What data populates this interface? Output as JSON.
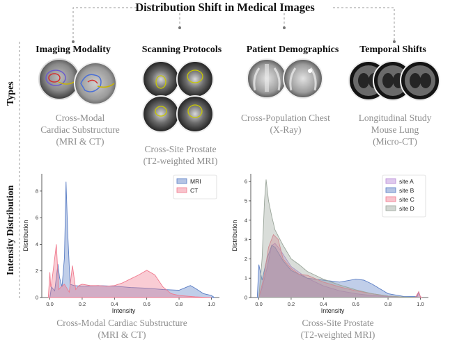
{
  "title": "Distribution Shift  in Medical Images",
  "side_labels": {
    "types": "Types",
    "intensity": "Intensity  Distribution"
  },
  "categories": [
    {
      "label": "Imaging Modality"
    },
    {
      "label": "Scanning Protocols"
    },
    {
      "label": "Patient Demographics"
    },
    {
      "label": "Temporal Shifts"
    }
  ],
  "type_captions": [
    {
      "line1": "Cross-Modal",
      "line2": "Cardiac Substructure",
      "line3": "(MRI & CT)"
    },
    {
      "line1": "Cross-Site Prostate",
      "line2": "(T2-weighted MRI)"
    },
    {
      "line1": "Cross-Population Chest",
      "line2": "(X-Ray)"
    },
    {
      "line1": "Longitudinal Study",
      "line2": "Mouse Lung",
      "line3": "(Micro-CT)"
    }
  ],
  "plot_captions": [
    {
      "line1": "Cross-Modal Cardiac Substructure",
      "line2": "(MRI & CT)"
    },
    {
      "line1": "Cross-Site Prostate",
      "line2": "(T2-weighted MRI)"
    }
  ],
  "colors": {
    "mri": "#5a7dc4",
    "ct": "#f07a8e",
    "siteA": "#b98ad6",
    "siteB": "#5a7dc4",
    "siteC": "#f07a8e",
    "siteD": "#9aa59a"
  },
  "chart_data": [
    {
      "type": "area",
      "xlabel": "Intensity",
      "ylabel": "Distribution",
      "xlim": [
        -0.05,
        1.05
      ],
      "ylim": [
        0,
        9.3
      ],
      "xticks": [
        0.0,
        0.2,
        0.4,
        0.6,
        0.8,
        1.0
      ],
      "xtick_labels": [
        "0.0",
        "0.2",
        "0.4",
        "0.6",
        "0.8",
        "1.0"
      ],
      "yticks": [
        0,
        2,
        4,
        6,
        8
      ],
      "ytick_labels": [
        "0",
        "2",
        "4",
        "6",
        "8"
      ],
      "legend_position": "top-right",
      "series": [
        {
          "name": "MRI",
          "color": "#5a7dc4",
          "points": [
            [
              0.0,
              0
            ],
            [
              0.01,
              0.8
            ],
            [
              0.03,
              0.5
            ],
            [
              0.05,
              2.5
            ],
            [
              0.06,
              1.5
            ],
            [
              0.075,
              0.8
            ],
            [
              0.09,
              3.0
            ],
            [
              0.1,
              8.7
            ],
            [
              0.11,
              5.0
            ],
            [
              0.125,
              1.0
            ],
            [
              0.15,
              0.9
            ],
            [
              0.2,
              0.85
            ],
            [
              0.3,
              0.9
            ],
            [
              0.4,
              0.85
            ],
            [
              0.5,
              0.75
            ],
            [
              0.6,
              0.7
            ],
            [
              0.7,
              0.6
            ],
            [
              0.8,
              0.55
            ],
            [
              0.87,
              0.9
            ],
            [
              0.9,
              0.7
            ],
            [
              0.95,
              0.3
            ],
            [
              1.0,
              0.15
            ],
            [
              1.02,
              0.0
            ]
          ]
        },
        {
          "name": "CT",
          "color": "#f07a8e",
          "points": [
            [
              -0.01,
              0
            ],
            [
              0.0,
              1.9
            ],
            [
              0.005,
              0.8
            ],
            [
              0.01,
              1.0
            ],
            [
              0.04,
              4.0
            ],
            [
              0.055,
              0.6
            ],
            [
              0.07,
              0.8
            ],
            [
              0.09,
              1.0
            ],
            [
              0.1,
              0.8
            ],
            [
              0.12,
              0.4
            ],
            [
              0.14,
              2.4
            ],
            [
              0.16,
              0.6
            ],
            [
              0.18,
              0.9
            ],
            [
              0.2,
              1.0
            ],
            [
              0.25,
              0.9
            ],
            [
              0.3,
              0.9
            ],
            [
              0.35,
              0.85
            ],
            [
              0.4,
              0.9
            ],
            [
              0.45,
              1.1
            ],
            [
              0.5,
              1.4
            ],
            [
              0.55,
              1.7
            ],
            [
              0.6,
              2.05
            ],
            [
              0.65,
              1.7
            ],
            [
              0.7,
              0.8
            ],
            [
              0.75,
              0.3
            ],
            [
              0.8,
              0.15
            ],
            [
              0.9,
              0.05
            ],
            [
              0.95,
              0.02
            ],
            [
              1.0,
              0.0
            ]
          ]
        }
      ]
    },
    {
      "type": "area",
      "xlabel": "Intensity",
      "ylabel": "Distribution",
      "xlim": [
        -0.05,
        1.05
      ],
      "ylim": [
        0,
        6.4
      ],
      "xticks": [
        0.0,
        0.2,
        0.4,
        0.6,
        0.8,
        1.0
      ],
      "xtick_labels": [
        "0.0",
        "0.2",
        "0.4",
        "0.6",
        "0.8",
        "1.0"
      ],
      "yticks": [
        0,
        1,
        2,
        3,
        4,
        5,
        6
      ],
      "ytick_labels": [
        "0",
        "1",
        "2",
        "3",
        "4",
        "5",
        "6"
      ],
      "legend_position": "top-right",
      "series": [
        {
          "name": "site A",
          "color": "#b98ad6",
          "points": [
            [
              0.0,
              0
            ],
            [
              0.02,
              0.5
            ],
            [
              0.05,
              1.5
            ],
            [
              0.08,
              2.7
            ],
            [
              0.1,
              2.8
            ],
            [
              0.13,
              2.5
            ],
            [
              0.2,
              1.6
            ],
            [
              0.3,
              1.0
            ],
            [
              0.4,
              0.6
            ],
            [
              0.5,
              0.35
            ],
            [
              0.6,
              0.2
            ],
            [
              0.7,
              0.1
            ],
            [
              0.8,
              0.05
            ],
            [
              0.9,
              0.02
            ],
            [
              1.0,
              0.0
            ]
          ]
        },
        {
          "name": "site B",
          "color": "#5a7dc4",
          "points": [
            [
              -0.01,
              0
            ],
            [
              0.0,
              1.7
            ],
            [
              0.02,
              0.9
            ],
            [
              0.05,
              2.0
            ],
            [
              0.08,
              2.7
            ],
            [
              0.1,
              2.6
            ],
            [
              0.15,
              1.9
            ],
            [
              0.2,
              1.4
            ],
            [
              0.3,
              1.0
            ],
            [
              0.4,
              0.9
            ],
            [
              0.5,
              0.8
            ],
            [
              0.6,
              0.95
            ],
            [
              0.65,
              0.9
            ],
            [
              0.7,
              0.7
            ],
            [
              0.8,
              0.2
            ],
            [
              0.9,
              0.05
            ],
            [
              0.98,
              0.05
            ],
            [
              0.99,
              0.3
            ],
            [
              1.0,
              0.05
            ],
            [
              1.01,
              0.0
            ]
          ]
        },
        {
          "name": "site C",
          "color": "#f07a8e",
          "points": [
            [
              0.0,
              0
            ],
            [
              0.03,
              1.0
            ],
            [
              0.06,
              2.6
            ],
            [
              0.09,
              3.25
            ],
            [
              0.12,
              3.0
            ],
            [
              0.15,
              2.0
            ],
            [
              0.2,
              1.5
            ],
            [
              0.25,
              1.2
            ],
            [
              0.3,
              1.15
            ],
            [
              0.4,
              0.8
            ],
            [
              0.5,
              0.55
            ],
            [
              0.6,
              0.35
            ],
            [
              0.7,
              0.2
            ],
            [
              0.8,
              0.08
            ],
            [
              0.9,
              0.02
            ],
            [
              0.97,
              0.02
            ],
            [
              0.99,
              0.3
            ],
            [
              1.0,
              0.05
            ],
            [
              1.01,
              0.0
            ]
          ]
        },
        {
          "name": "site D",
          "color": "#9aa59a",
          "points": [
            [
              0.0,
              0
            ],
            [
              0.02,
              2.0
            ],
            [
              0.035,
              5.0
            ],
            [
              0.045,
              6.1
            ],
            [
              0.06,
              5.0
            ],
            [
              0.08,
              4.2
            ],
            [
              0.1,
              3.5
            ],
            [
              0.15,
              2.7
            ],
            [
              0.2,
              2.0
            ],
            [
              0.25,
              1.7
            ],
            [
              0.3,
              1.35
            ],
            [
              0.4,
              0.95
            ],
            [
              0.5,
              0.65
            ],
            [
              0.6,
              0.4
            ],
            [
              0.7,
              0.2
            ],
            [
              0.8,
              0.08
            ],
            [
              0.9,
              0.03
            ],
            [
              1.0,
              0.0
            ]
          ]
        }
      ]
    }
  ]
}
